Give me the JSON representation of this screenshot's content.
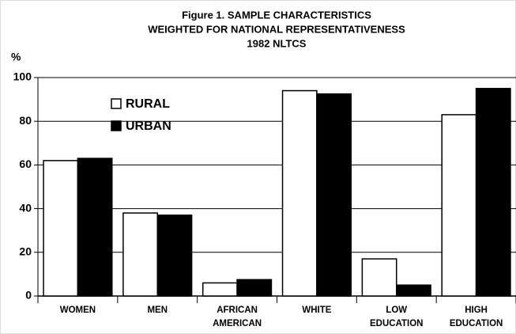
{
  "chart_data": {
    "type": "bar",
    "title": [
      "Figure 1. SAMPLE CHARACTERISTICS",
      "WEIGHTED FOR NATIONAL REPRESENTATIVENESS",
      "1982 NLTCS"
    ],
    "y_label": "%",
    "categories": [
      "WOMEN",
      "MEN",
      "AFRICAN AMERICAN",
      "WHITE",
      "LOW EDUCATION",
      "HIGH EDUCATION"
    ],
    "series": [
      {
        "name": "RURAL",
        "color": "#ffffff",
        "values": [
          62,
          38,
          6,
          94,
          17,
          83
        ]
      },
      {
        "name": "URBAN",
        "color": "#000000",
        "values": [
          63,
          37,
          7.5,
          92.5,
          5,
          95
        ]
      }
    ],
    "ylim": [
      0,
      100
    ],
    "yticks": [
      0,
      20,
      40,
      60,
      80,
      100
    ],
    "grid": true
  }
}
